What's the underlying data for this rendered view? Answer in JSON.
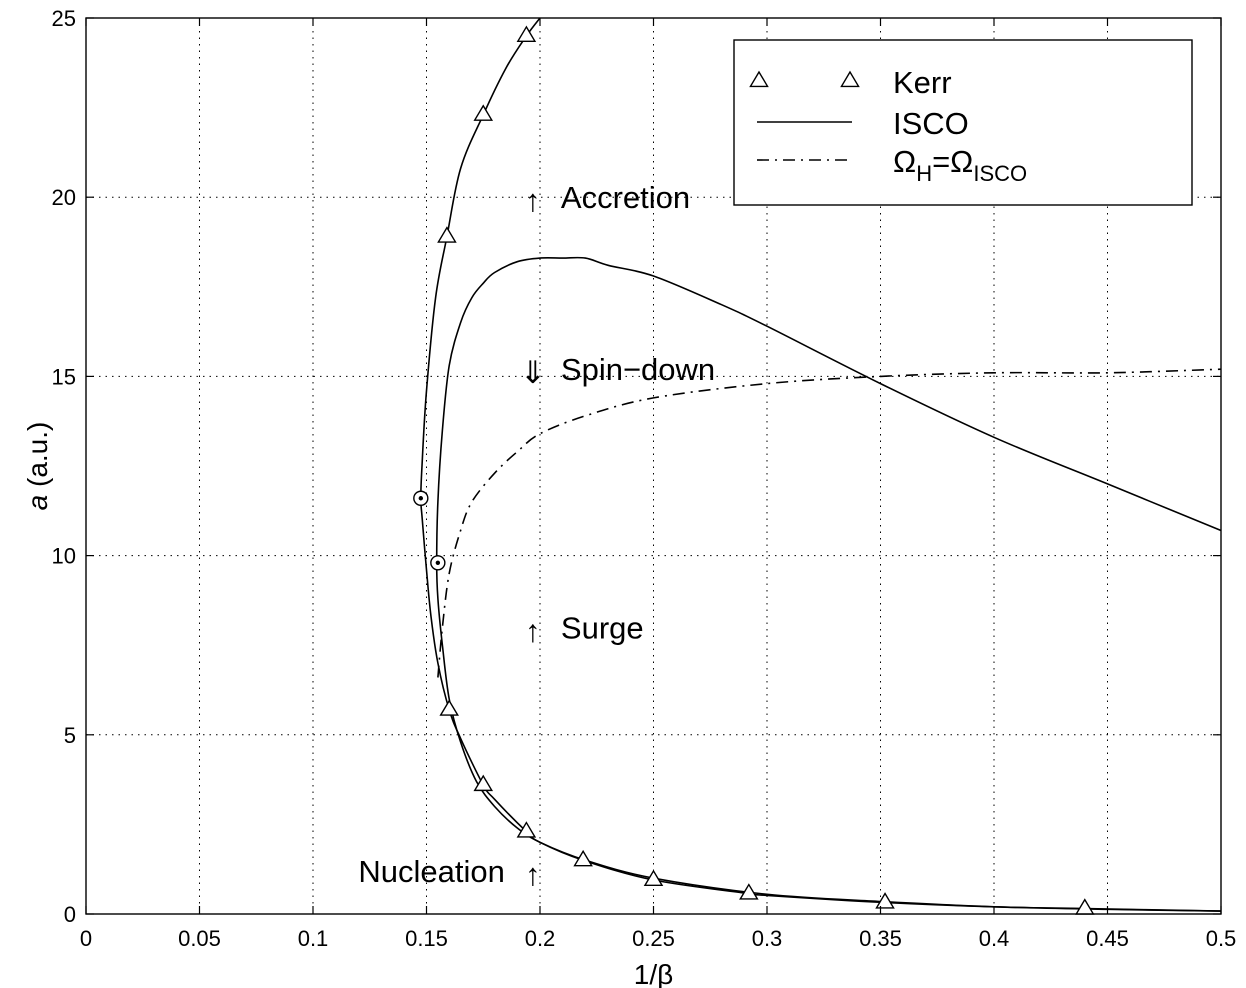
{
  "chart_data": {
    "type": "line",
    "title": "",
    "xlabel": "1/β",
    "ylabel_italic": "a",
    "ylabel_rest": " (a.u.)",
    "xlim": [
      0,
      0.5
    ],
    "ylim": [
      0,
      25
    ],
    "xticks": [
      0,
      0.05,
      0.1,
      0.15,
      0.2,
      0.25,
      0.3,
      0.35,
      0.4,
      0.45,
      0.5
    ],
    "xtick_labels": [
      "0",
      "0.05",
      "0.1",
      "0.15",
      "0.2",
      "0.25",
      "0.3",
      "0.35",
      "0.4",
      "0.45",
      "0.5"
    ],
    "yticks": [
      0,
      5,
      10,
      15,
      20,
      25
    ],
    "ytick_labels": [
      "0",
      "5",
      "10",
      "15",
      "20",
      "25"
    ],
    "grid": true,
    "legend_position": "top-right",
    "legend": [
      {
        "label": "Kerr",
        "style": "triangle-markers"
      },
      {
        "label": "ISCO",
        "style": "solid"
      },
      {
        "label_main": "Ω",
        "sub1": "H",
        "eq": "=Ω",
        "sub2": "ISCO",
        "style": "dashdot"
      }
    ],
    "series": [
      {
        "name": "Kerr",
        "style": "solid-with-triangles",
        "x": [
          0.5,
          0.44,
          0.4,
          0.352,
          0.3,
          0.292,
          0.25,
          0.219,
          0.2,
          0.194,
          0.18,
          0.175,
          0.165,
          0.16,
          0.155,
          0.152,
          0.15,
          0.148,
          0.1475,
          0.148,
          0.15,
          0.154,
          0.159,
          0.165,
          0.175,
          0.185,
          0.194,
          0.2
        ],
        "y": [
          0.08,
          0.15,
          0.2,
          0.32,
          0.52,
          0.57,
          0.95,
          1.5,
          2.0,
          2.3,
          3.2,
          3.6,
          4.9,
          5.7,
          7.0,
          8.3,
          9.6,
          11.1,
          11.6,
          12.5,
          14.6,
          17.2,
          18.9,
          20.8,
          22.3,
          23.6,
          24.5,
          25.0
        ],
        "marker_x": [
          0.44,
          0.352,
          0.292,
          0.25,
          0.219,
          0.194,
          0.175,
          0.16,
          0.159,
          0.175,
          0.194
        ],
        "marker_y": [
          0.15,
          0.32,
          0.57,
          0.95,
          1.5,
          2.3,
          3.6,
          5.7,
          18.9,
          22.3,
          24.5
        ]
      },
      {
        "name": "ISCO",
        "style": "solid",
        "x": [
          0.5,
          0.45,
          0.4,
          0.35,
          0.3,
          0.25,
          0.22,
          0.2,
          0.19,
          0.18,
          0.172,
          0.165,
          0.16,
          0.157,
          0.155,
          0.1545,
          0.155,
          0.157,
          0.16,
          0.165,
          0.17,
          0.175,
          0.18,
          0.19,
          0.2,
          0.21,
          0.22,
          0.23,
          0.25,
          0.28,
          0.3,
          0.35,
          0.4,
          0.45,
          0.5
        ],
        "y": [
          0.08,
          0.13,
          0.2,
          0.35,
          0.55,
          1.0,
          1.5,
          2.0,
          2.4,
          3.0,
          3.7,
          4.8,
          6.0,
          7.5,
          8.8,
          9.8,
          11.5,
          13.5,
          15.3,
          16.5,
          17.2,
          17.6,
          17.9,
          18.2,
          18.3,
          18.3,
          18.3,
          18.1,
          17.8,
          17.0,
          16.4,
          14.8,
          13.3,
          12.0,
          10.7
        ]
      },
      {
        "name": "ΩH=ΩISCO",
        "style": "dashdot",
        "x": [
          0.155,
          0.157,
          0.16,
          0.165,
          0.17,
          0.18,
          0.19,
          0.2,
          0.22,
          0.25,
          0.3,
          0.35,
          0.4,
          0.45,
          0.5
        ],
        "y": [
          6.6,
          8.0,
          9.5,
          10.7,
          11.5,
          12.3,
          12.9,
          13.4,
          13.9,
          14.4,
          14.8,
          15.0,
          15.1,
          15.1,
          15.2
        ]
      }
    ],
    "critical_points": [
      {
        "x": 0.1475,
        "y": 11.6
      },
      {
        "x": 0.155,
        "y": 9.8
      }
    ],
    "annotations": [
      {
        "arrow": "↑",
        "text": "Accretion",
        "x": 0.196,
        "y": 20.0
      },
      {
        "arrow": "⇓",
        "text": "Spin−down",
        "x": 0.196,
        "y": 15.2
      },
      {
        "arrow": "↑",
        "text": "Surge",
        "x": 0.196,
        "y": 8.0
      },
      {
        "arrow": "↑",
        "text": "Nucleation",
        "x": 0.196,
        "y": 1.2
      }
    ]
  }
}
